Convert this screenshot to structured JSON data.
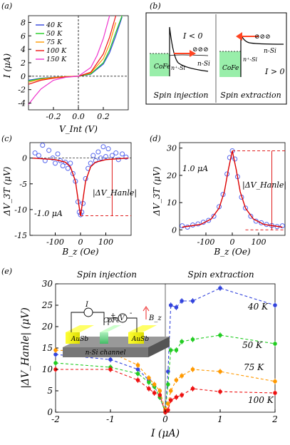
{
  "colors": {
    "blue": "#3344dd",
    "green": "#22cc22",
    "orange": "#ff9900",
    "red": "#ee1111",
    "magenta": "#ee33cc",
    "black": "#000000",
    "circle": "#5566ee",
    "fit": "#dd0000"
  },
  "panel_a": {
    "label": "(a)",
    "ylabel": "I (μA)",
    "xlabel": "V_Int (V)",
    "xticks": [
      "-0.2",
      "0.0",
      "0.2"
    ],
    "yticks": [
      "8",
      "6",
      "4",
      "2",
      "0",
      "-2",
      "-4"
    ],
    "legend": [
      {
        "label": "40 K",
        "color": "#3344dd"
      },
      {
        "label": "50 K",
        "color": "#22cc22"
      },
      {
        "label": "75 K",
        "color": "#ff9900"
      },
      {
        "label": "100 K",
        "color": "#ee1111"
      },
      {
        "label": "150 K",
        "color": "#ee33cc"
      }
    ]
  },
  "panel_b": {
    "label": "(b)",
    "left_title": "Spin injection",
    "right_title": "Spin extraction",
    "left_cond": "I < 0",
    "right_cond": "I > 0",
    "cofe": "CoFe",
    "nplus": "n⁺-Si",
    "nsi": "n-Si"
  },
  "panel_c": {
    "label": "(c)",
    "ylabel": "ΔV_3T (μV)",
    "xlabel": "B_z (Oe)",
    "xticks": [
      "-100",
      "0",
      "100"
    ],
    "yticks": [
      "0",
      "-5",
      "-10",
      "-15"
    ],
    "current": "-1.0 μA",
    "hanle": "|ΔV_Hanle|"
  },
  "panel_d": {
    "label": "(d)",
    "ylabel": "ΔV_3T (μV)",
    "xlabel": "B_z (Oe)",
    "xticks": [
      "-100",
      "0",
      "100"
    ],
    "yticks": [
      "30",
      "20",
      "10",
      "0"
    ],
    "current": "1.0 μA",
    "hanle": "|ΔV_Hanle|"
  },
  "panel_e": {
    "label": "(e)",
    "ylabel": "|ΔV_Hanle| (μV)",
    "xlabel": "I (μA)",
    "xticks": [
      "-2",
      "-1",
      "0",
      "1",
      "2"
    ],
    "yticks": [
      "30",
      "25",
      "20",
      "15",
      "10",
      "5",
      "0"
    ],
    "left_title": "Spin injection",
    "right_title": "Spin extraction",
    "inset": {
      "i": "I",
      "v": "V",
      "plus": "+",
      "minus": "-",
      "cofe": "CoFe",
      "ausb_left": "AuSb",
      "ausb_right": "AuSb",
      "channel": "n-Si channel",
      "bz": "B_z"
    },
    "series_labels": [
      "40 K",
      "50 K",
      "75 K",
      "100 K"
    ]
  },
  "chart_data": [
    {
      "panel": "a",
      "type": "line",
      "xlabel": "V_Int (V)",
      "ylabel": "I (μA)",
      "xlim": [
        -0.4,
        0.4
      ],
      "ylim": [
        -5,
        9
      ],
      "series": [
        {
          "name": "40 K",
          "x": [
            -0.4,
            -0.3,
            -0.2,
            -0.1,
            0,
            0.1,
            0.2,
            0.25,
            0.3,
            0.35
          ],
          "y": [
            -0.6,
            -0.3,
            -0.15,
            -0.05,
            0,
            0.3,
            1.8,
            3.5,
            6.0,
            8.8
          ]
        },
        {
          "name": "50 K",
          "x": [
            -0.4,
            -0.3,
            -0.2,
            -0.1,
            0,
            0.1,
            0.2,
            0.25,
            0.3,
            0.35
          ],
          "y": [
            -0.7,
            -0.35,
            -0.2,
            -0.05,
            0,
            0.35,
            2.0,
            3.9,
            6.5,
            9.0
          ]
        },
        {
          "name": "75 K",
          "x": [
            -0.4,
            -0.3,
            -0.2,
            -0.1,
            0,
            0.1,
            0.2,
            0.25,
            0.3
          ],
          "y": [
            -0.9,
            -0.45,
            -0.2,
            -0.05,
            0,
            0.5,
            2.6,
            4.8,
            8.0
          ]
        },
        {
          "name": "100 K",
          "x": [
            -0.4,
            -0.3,
            -0.2,
            -0.1,
            0,
            0.1,
            0.2,
            0.25,
            0.3
          ],
          "y": [
            -1.2,
            -0.6,
            -0.3,
            -0.1,
            0,
            0.6,
            3.3,
            5.8,
            9.0
          ]
        },
        {
          "name": "150 K",
          "x": [
            -0.4,
            -0.35,
            -0.3,
            -0.2,
            -0.1,
            0,
            0.1,
            0.15,
            0.2,
            0.25
          ],
          "y": [
            -4.2,
            -3.0,
            -1.9,
            -0.6,
            -0.15,
            0,
            1.3,
            3.1,
            5.6,
            9.0
          ]
        }
      ]
    },
    {
      "panel": "c",
      "type": "scatter",
      "xlabel": "B_z (Oe)",
      "ylabel": "ΔV_3T (μV)",
      "xlim": [
        -200,
        200
      ],
      "ylim": [
        -15,
        3
      ],
      "series": [
        {
          "name": "data",
          "x": [
            -180,
            -165,
            -150,
            -140,
            -125,
            -110,
            -100,
            -90,
            -80,
            -70,
            -60,
            -50,
            -40,
            -30,
            -20,
            -10,
            -5,
            0,
            5,
            10,
            20,
            30,
            40,
            50,
            60,
            70,
            80,
            90,
            100,
            110,
            125,
            140,
            150,
            165,
            180
          ],
          "y": [
            1.0,
            0.5,
            2.5,
            -0.5,
            1.5,
            0,
            -1.0,
            0.8,
            -0.5,
            -1.5,
            -0.8,
            -2.0,
            -1.0,
            -3.0,
            -4.5,
            -8.5,
            -10.5,
            -11.0,
            -10.5,
            -8.8,
            -4.0,
            -2.0,
            -1.0,
            0.5,
            -0.5,
            1.2,
            0,
            2.2,
            0.3,
            1.8,
            0.5,
            1.0,
            -0.3,
            0.8,
            0.2
          ]
        },
        {
          "name": "fit",
          "x": [
            -190,
            -100,
            -60,
            -40,
            -20,
            -10,
            0,
            10,
            20,
            40,
            60,
            100,
            190
          ],
          "y": [
            0,
            -0.3,
            -0.8,
            -1.7,
            -4.5,
            -8.0,
            -11.2,
            -8.0,
            -4.5,
            -1.7,
            -0.8,
            -0.3,
            0
          ]
        }
      ]
    },
    {
      "panel": "d",
      "type": "scatter",
      "xlabel": "B_z (Oe)",
      "ylabel": "ΔV_3T (μV)",
      "xlim": [
        -200,
        200
      ],
      "ylim": [
        -2,
        32
      ],
      "series": [
        {
          "name": "data",
          "x": [
            -190,
            -170,
            -150,
            -130,
            -110,
            -90,
            -70,
            -50,
            -35,
            -20,
            -10,
            0,
            10,
            20,
            35,
            50,
            70,
            90,
            110,
            130,
            150,
            170,
            190
          ],
          "y": [
            1.5,
            1.0,
            1.8,
            2.2,
            2.8,
            3.5,
            5.0,
            8.5,
            13.0,
            20.5,
            26.5,
            29.0,
            26.0,
            19.5,
            12.0,
            8.0,
            5.0,
            3.2,
            2.6,
            2.0,
            1.6,
            1.2,
            1.5
          ]
        },
        {
          "name": "fit",
          "x": [
            -190,
            -120,
            -80,
            -50,
            -30,
            -15,
            0,
            15,
            30,
            50,
            80,
            120,
            190
          ],
          "y": [
            1.0,
            2.0,
            4.0,
            8.0,
            14.0,
            22.0,
            29.0,
            22.0,
            14.0,
            8.0,
            4.0,
            2.0,
            1.0
          ]
        }
      ]
    },
    {
      "panel": "e",
      "type": "scatter",
      "xlabel": "I (μA)",
      "ylabel": "|ΔV_Hanle| (μV)",
      "xlim": [
        -2,
        2
      ],
      "ylim": [
        0,
        30
      ],
      "series": [
        {
          "name": "40 K",
          "x": [
            -2,
            -1,
            -0.5,
            -0.3,
            -0.2,
            -0.1,
            0,
            0.05,
            0.1,
            0.2,
            0.3,
            0.5,
            1,
            2
          ],
          "y": [
            13.5,
            12.3,
            10,
            7.5,
            6.0,
            3.5,
            0,
            9.5,
            25,
            24.5,
            26,
            26,
            29,
            25
          ]
        },
        {
          "name": "50 K",
          "x": [
            -2,
            -1,
            -0.5,
            -0.3,
            -0.2,
            -0.1,
            0,
            0.05,
            0.1,
            0.2,
            0.3,
            0.5,
            1,
            2
          ],
          "y": [
            11.5,
            10.5,
            9.0,
            7.0,
            6.0,
            3.5,
            0,
            6.5,
            14.5,
            14.5,
            16.5,
            17,
            18,
            16
          ]
        },
        {
          "name": "75 K",
          "x": [
            -2,
            -1,
            -0.5,
            -0.3,
            -0.2,
            -0.1,
            0,
            0.05,
            0.1,
            0.2,
            0.3,
            0.5,
            1,
            2
          ],
          "y": [
            14.5,
            14,
            11,
            8,
            6.5,
            5.0,
            0.5,
            2.0,
            5.0,
            7.5,
            8.5,
            10,
            9.5,
            7.2
          ]
        },
        {
          "name": "100 K",
          "x": [
            -2,
            -1,
            -0.5,
            -0.3,
            -0.2,
            -0.1,
            0,
            0.05,
            0.1,
            0.2,
            0.3,
            0.5,
            1,
            2
          ],
          "y": [
            10,
            10,
            7.5,
            5.5,
            4.5,
            4.0,
            0,
            0.5,
            2.8,
            3.5,
            4.0,
            5.5,
            4.8,
            4.5
          ]
        }
      ]
    }
  ]
}
